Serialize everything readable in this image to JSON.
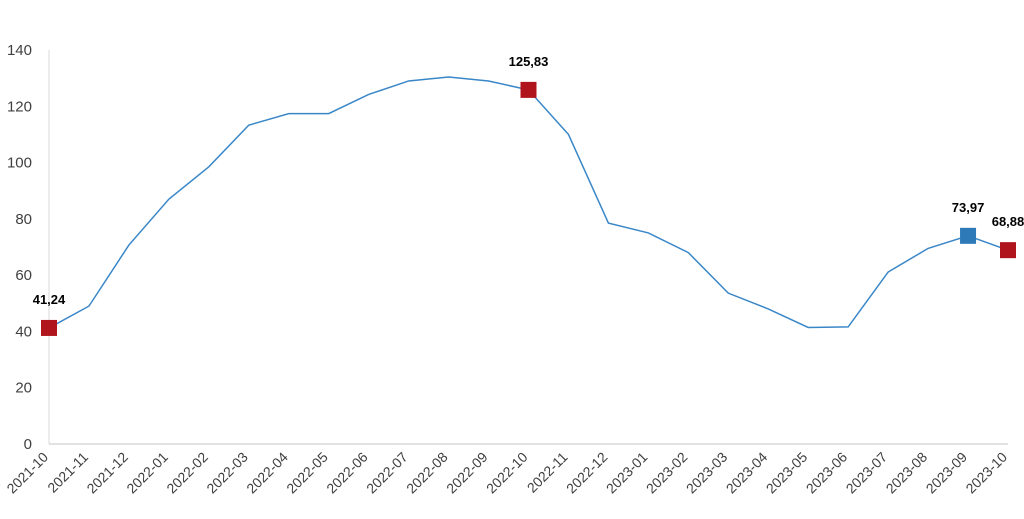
{
  "chart_data": {
    "type": "line",
    "title": "",
    "xlabel": "",
    "ylabel": "",
    "ylim": [
      0,
      140
    ],
    "yticks": [
      "0",
      "20",
      "40",
      "60",
      "80",
      "100",
      "120",
      "140"
    ],
    "grid": false,
    "categories": [
      "2021-10",
      "2021-11",
      "2021-12",
      "2022-01",
      "2022-02",
      "2022-03",
      "2022-04",
      "2022-05",
      "2022-06",
      "2022-07",
      "2022-08",
      "2022-09",
      "2022-10",
      "2022-11",
      "2022-12",
      "2023-01",
      "2023-02",
      "2023-03",
      "2023-04",
      "2023-05",
      "2023-06",
      "2023-07",
      "2023-08",
      "2023-09",
      "2023-10"
    ],
    "series": [
      {
        "values": [
          41.24,
          49.0,
          70.7,
          87.0,
          98.5,
          113.3,
          117.4,
          117.4,
          124.2,
          129.0,
          130.4,
          129.0,
          125.83,
          110.0,
          78.5,
          75.0,
          68.0,
          53.6,
          48.0,
          41.4,
          41.6,
          61.1,
          69.5,
          73.97,
          68.88
        ],
        "color": "#3a87c8"
      }
    ],
    "highlighted_points": [
      {
        "index": 0,
        "label": "41,24",
        "color": "#b0141c"
      },
      {
        "index": 12,
        "label": "125,83",
        "color": "#b0141c"
      },
      {
        "index": 23,
        "label": "73,97",
        "color": "#2e7ab8"
      },
      {
        "index": 24,
        "label": "68,88",
        "color": "#b0141c"
      }
    ],
    "axis_color": "#d9d9d9"
  }
}
